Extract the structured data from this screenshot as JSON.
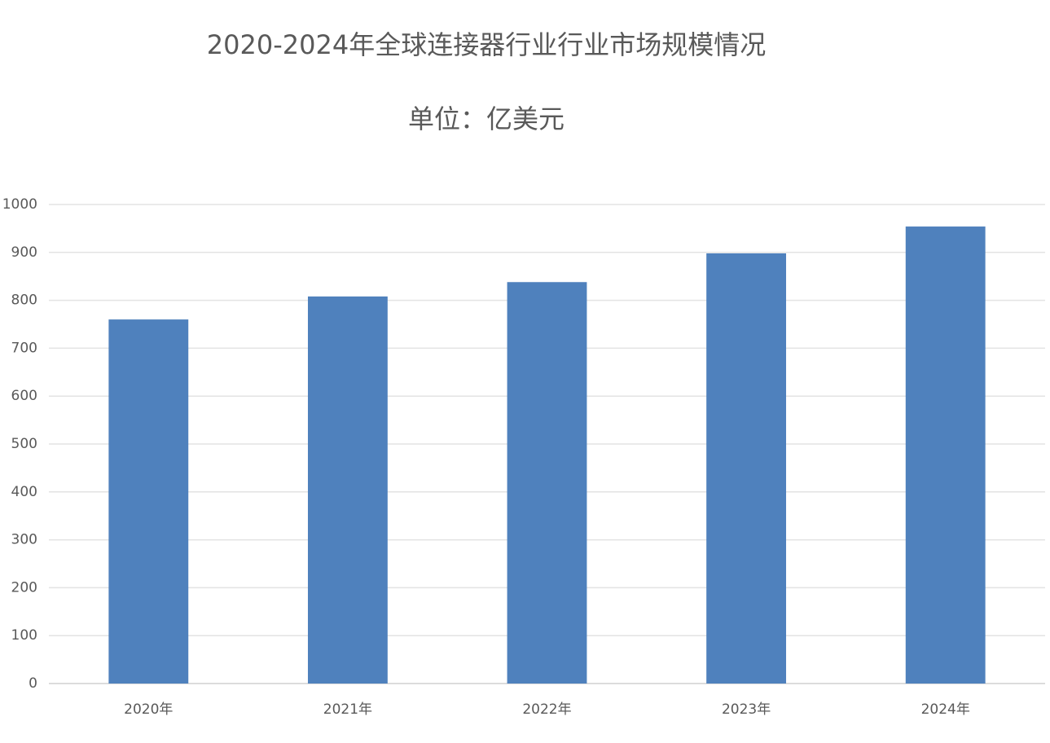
{
  "chart_data": {
    "type": "bar",
    "title": "2020-2024年全球连接器行业行业市场规模情况",
    "subtitle": "单位：亿美元",
    "categories": [
      "2020年",
      "2021年",
      "2022年",
      "2023年",
      "2024年"
    ],
    "values": [
      760,
      808,
      838,
      898,
      954
    ],
    "color": "#4f81bd",
    "ylim": [
      0,
      1000
    ],
    "yticks": [
      0,
      100,
      200,
      300,
      400,
      500,
      600,
      700,
      800,
      900,
      1000
    ],
    "grid": true
  }
}
